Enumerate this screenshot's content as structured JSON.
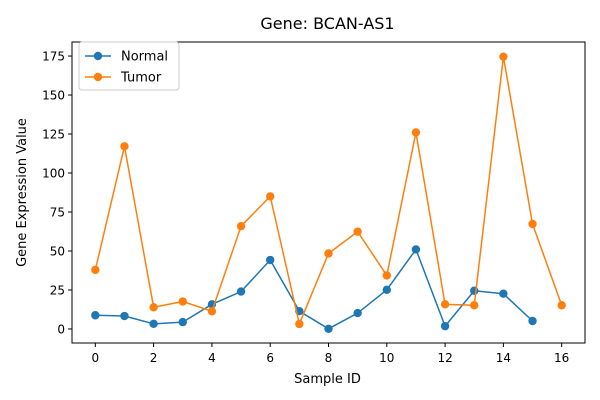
{
  "chart_data": {
    "type": "line",
    "title": "Gene: BCAN-AS1",
    "xlabel": "Sample ID",
    "ylabel": "Gene Expression Value",
    "xlim": [
      -0.8,
      16.8
    ],
    "ylim": [
      -9,
      184
    ],
    "xticks": [
      0,
      2,
      4,
      6,
      8,
      10,
      12,
      14,
      16
    ],
    "yticks": [
      0,
      25,
      50,
      75,
      100,
      125,
      150,
      175
    ],
    "grid": false,
    "legend_position": "top-left",
    "series": [
      {
        "name": "Normal",
        "color": "#1f77b4",
        "x": [
          0,
          1,
          2,
          3,
          4,
          5,
          6,
          7,
          8,
          9,
          10,
          11,
          12,
          13,
          14,
          15
        ],
        "values": [
          8.8,
          8.3,
          3.3,
          4.4,
          15.8,
          24.0,
          44.2,
          11.4,
          0.1,
          10.2,
          25.1,
          51.0,
          1.8,
          24.5,
          22.6,
          5.1
        ]
      },
      {
        "name": "Tumor",
        "color": "#ff7f0e",
        "x": [
          0,
          1,
          2,
          3,
          4,
          5,
          6,
          7,
          8,
          9,
          10,
          11,
          12,
          13,
          14,
          15,
          16
        ],
        "values": [
          37.9,
          117.1,
          13.9,
          17.6,
          11.3,
          65.9,
          85.0,
          3.2,
          48.4,
          62.4,
          34.3,
          126.0,
          15.8,
          15.2,
          174.6,
          67.3,
          15.2
        ]
      }
    ]
  }
}
